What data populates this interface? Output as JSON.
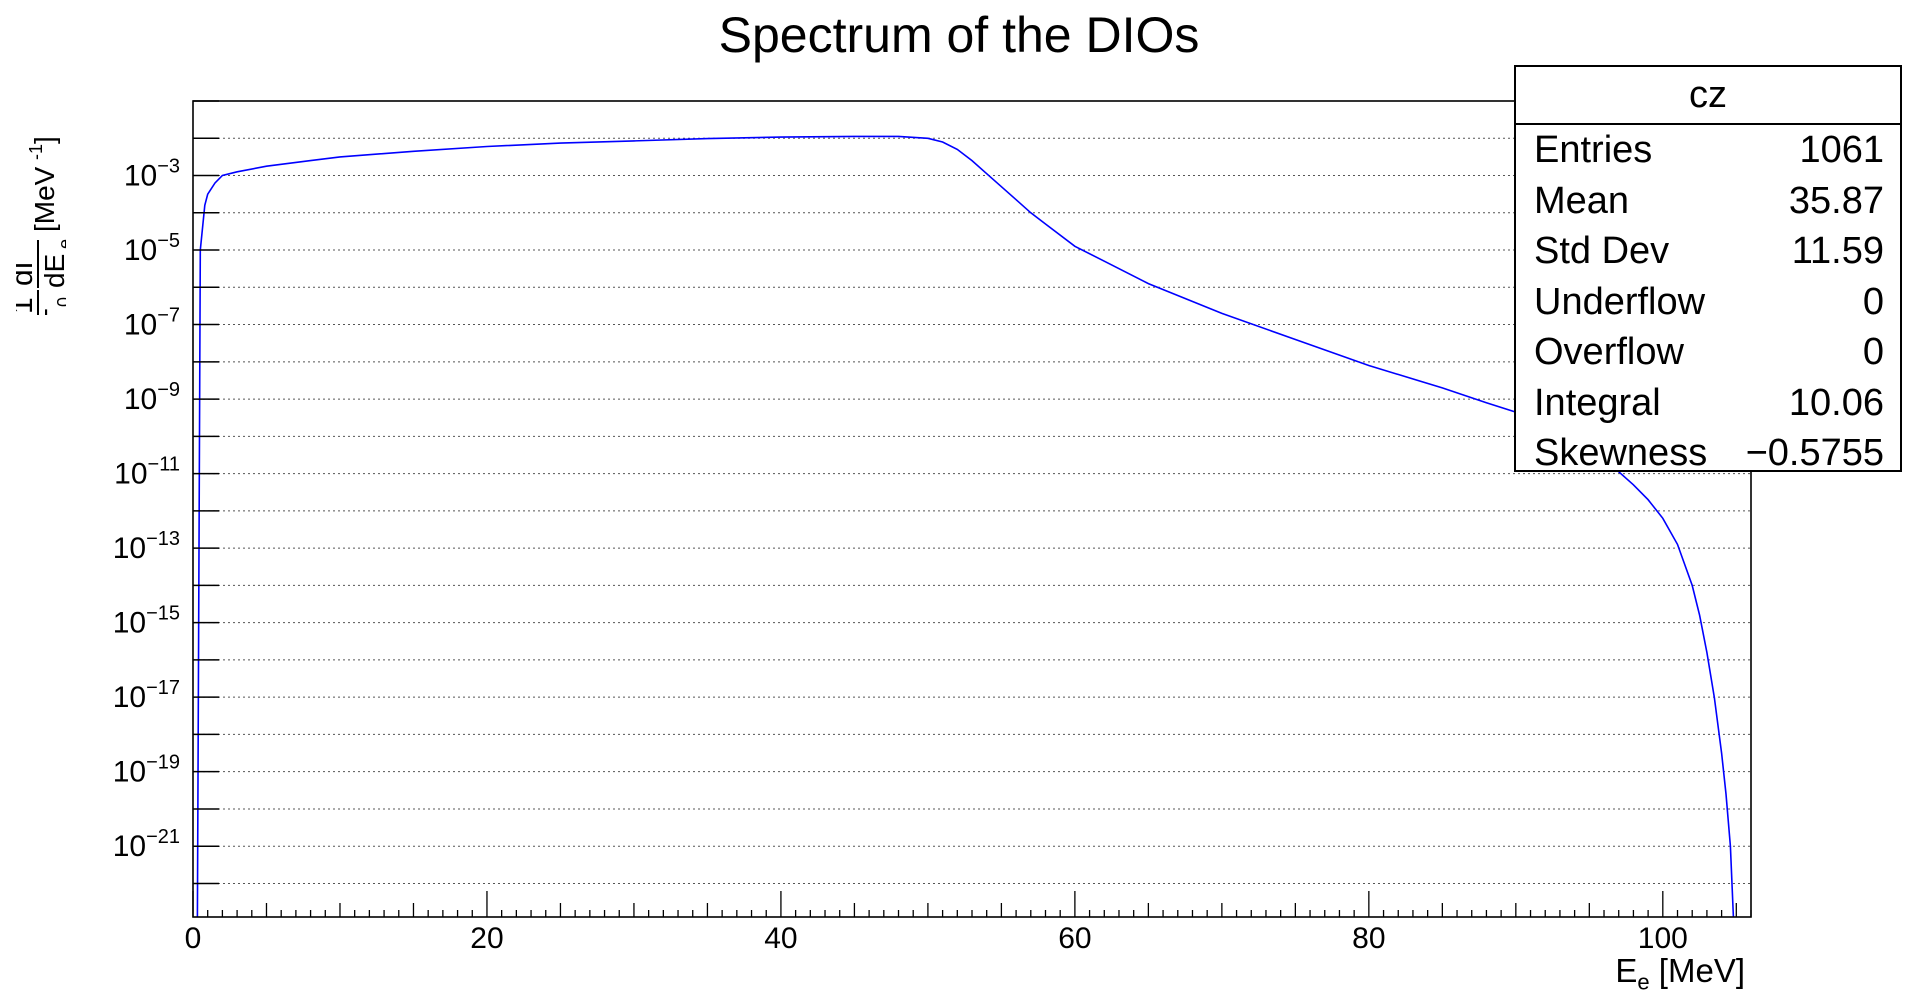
{
  "title": "Spectrum of the DIOs",
  "stats": {
    "name": "cz",
    "rows": [
      {
        "label": "Entries",
        "value": "1061"
      },
      {
        "label": "Mean",
        "value": "35.87"
      },
      {
        "label": "Std Dev",
        "value": "11.59"
      },
      {
        "label": "Underflow",
        "value": "0"
      },
      {
        "label": "Overflow",
        "value": "0"
      },
      {
        "label": "Integral",
        "value": "10.06"
      },
      {
        "label": "Skewness",
        "value": "−0.5755"
      }
    ]
  },
  "chart_data": {
    "type": "line",
    "title": "Spectrum of the DIOs",
    "xlabel": "E_e [MeV]",
    "ylabel": "(1/Γ_0) dΓ/dE_e [MeV^-1]",
    "xlim": [
      0,
      106
    ],
    "ylog": true,
    "ylim_log10": [
      -22.9,
      -1.0
    ],
    "x_ticks": [
      0,
      20,
      40,
      60,
      80,
      100
    ],
    "y_ticks_log10": [
      -3,
      -5,
      -7,
      -9,
      -11,
      -13,
      -15,
      -17,
      -19,
      -21
    ],
    "grid": "horizontal",
    "color": "#0000ff",
    "series": [
      {
        "x": [
          0.3,
          0.5,
          0.8,
          1.0,
          1.5,
          2.0,
          3,
          5,
          8,
          10,
          15,
          20,
          25,
          30,
          35,
          40,
          45,
          48,
          50,
          51,
          52,
          53,
          54,
          55,
          56,
          57,
          58,
          60,
          62,
          65,
          70,
          75,
          80,
          85,
          88,
          90,
          92,
          94,
          96,
          98,
          99,
          100,
          101,
          102,
          102.5,
          103,
          103.5,
          104,
          104.3,
          104.6,
          104.8
        ],
        "y_log10": [
          -22.9,
          -5.0,
          -3.8,
          -3.5,
          -3.2,
          -3.0,
          -2.9,
          -2.75,
          -2.6,
          -2.5,
          -2.35,
          -2.22,
          -2.13,
          -2.07,
          -2.01,
          -1.97,
          -1.95,
          -1.95,
          -2.0,
          -2.1,
          -2.3,
          -2.6,
          -2.95,
          -3.3,
          -3.65,
          -4.0,
          -4.3,
          -4.9,
          -5.3,
          -5.9,
          -6.7,
          -7.4,
          -8.1,
          -8.7,
          -9.1,
          -9.35,
          -9.7,
          -10.1,
          -10.6,
          -11.3,
          -11.7,
          -12.2,
          -12.9,
          -14.0,
          -14.8,
          -15.8,
          -17.0,
          -18.5,
          -19.6,
          -21.0,
          -22.9
        ]
      }
    ]
  }
}
